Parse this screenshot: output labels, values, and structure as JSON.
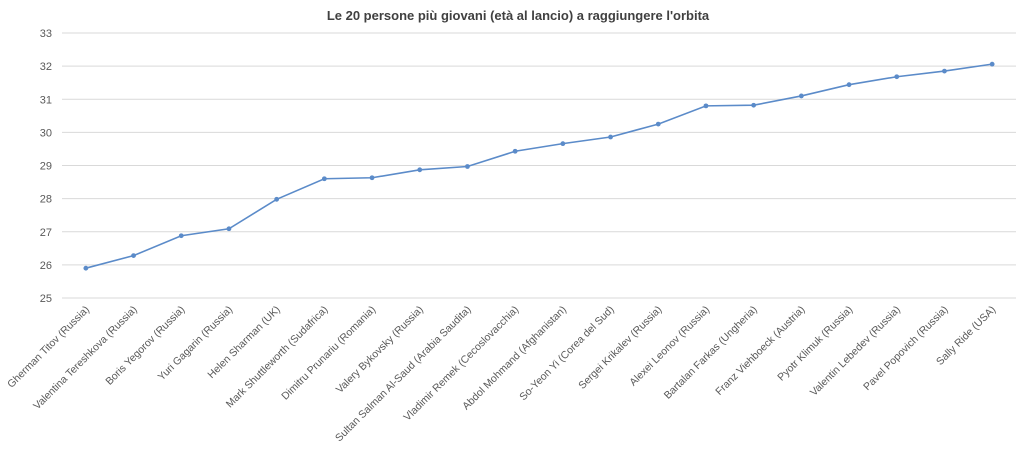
{
  "chart_data": {
    "type": "line",
    "title": "Le 20 persone più giovani (età al lancio) a raggiungere l'orbita",
    "xlabel": "",
    "ylabel": "",
    "ylim": [
      25,
      33
    ],
    "yticks": [
      25,
      26,
      27,
      28,
      29,
      30,
      31,
      32,
      33
    ],
    "grid": true,
    "legend": "none",
    "colors": {
      "series": "#5b8bc9",
      "grid": "#d9d9d9",
      "text": "#595959"
    },
    "categories": [
      "Gherman Titov (Russia)",
      "Valentina Tereshkova (Russia)",
      "Boris Yegorov (Russia)",
      "Yuri Gagarin (Russia)",
      "Helen Sharman (UK)",
      "Mark Shuttleworth (Sudafrica)",
      "Dimitru Prunariu (Romania)",
      "Valery Bykovsky (Russia)",
      "Sultan Salman Al-Saud (Arabia Saudita)",
      "Vladimir Remek (Cecoslovacchia)",
      "Abdol Mohmand (Afghanistan)",
      "So-Yeon Yi (Corea del Sud)",
      "Sergei Krikalev (Russia)",
      "Alexei Leonov (Russia)",
      "Bartalan Farkas (Ungheria)",
      "Franz Viehboeck (Austria)",
      "Pyotr Klimuk (Russia)",
      "Valentin Lebedev (Russia)",
      "Pavel Popovich (Russia)",
      "Sally Ride (USA)"
    ],
    "series": [
      {
        "values": [
          25.9,
          26.28,
          26.88,
          27.09,
          27.98,
          28.6,
          28.63,
          28.87,
          28.97,
          29.43,
          29.66,
          29.86,
          30.25,
          30.8,
          30.82,
          31.1,
          31.44,
          31.68,
          31.85,
          32.06
        ]
      }
    ]
  }
}
